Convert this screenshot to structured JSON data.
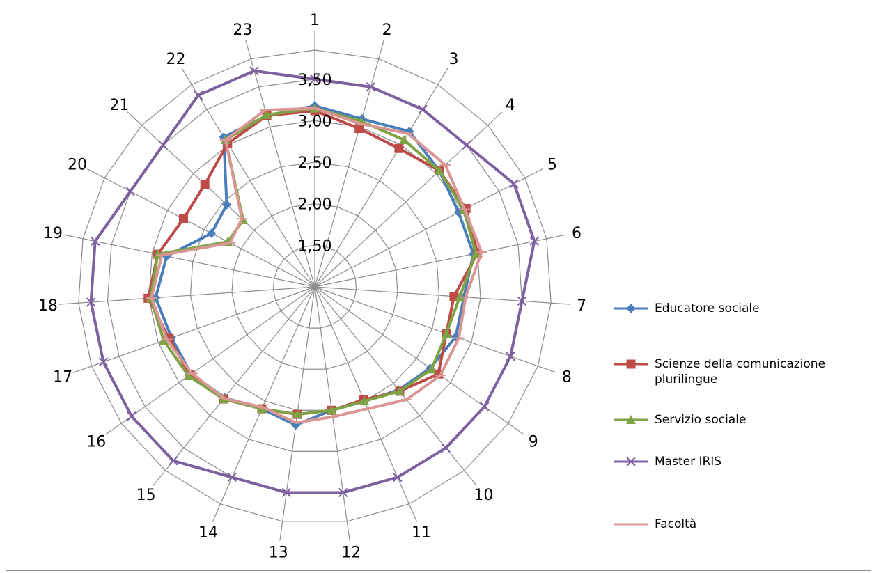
{
  "chart_data": {
    "type": "radar",
    "categories": [
      "1",
      "2",
      "3",
      "4",
      "5",
      "6",
      "7",
      "8",
      "9",
      "10",
      "11",
      "12",
      "13",
      "14",
      "15",
      "16",
      "17",
      "18",
      "19",
      "20",
      "21",
      "22",
      "23"
    ],
    "rings": [
      1.5,
      2.0,
      2.5,
      3.0,
      3.5
    ],
    "ring_labels": [
      "1,50",
      "2,00",
      "2,50",
      "3,00",
      "3,50"
    ],
    "rmin": 1.0,
    "rmax": 3.85,
    "legend_position": "right",
    "series": [
      {
        "name": "Educatore sociale",
        "color": "#4a7ebb",
        "marker": "diamond",
        "values": [
          3.18,
          3.1,
          3.19,
          3.05,
          2.95,
          2.95,
          2.8,
          2.8,
          2.7,
          2.6,
          2.5,
          2.5,
          2.68,
          2.6,
          2.72,
          2.82,
          2.83,
          2.92,
          2.82,
          2.4,
          2.45,
          3.11,
          3.14
        ]
      },
      {
        "name": "Scienze della comunicazione plurilingue",
        "color": "#be4b48",
        "marker": "square",
        "values": [
          3.12,
          2.98,
          2.95,
          3.05,
          3.05,
          3.0,
          2.68,
          2.68,
          2.82,
          2.62,
          2.48,
          2.5,
          2.55,
          2.6,
          2.74,
          2.84,
          2.86,
          3.01,
          2.93,
          2.78,
          2.81,
          3.02,
          3.14
        ]
      },
      {
        "name": "Servizio sociale",
        "color": "#7ea345",
        "marker": "triangle",
        "values": [
          3.15,
          3.07,
          3.07,
          3.05,
          3.02,
          2.98,
          2.75,
          2.68,
          2.72,
          2.62,
          2.5,
          2.5,
          2.55,
          2.6,
          2.74,
          2.86,
          2.93,
          2.98,
          2.93,
          2.18,
          2.18,
          3.07,
          3.15
        ]
      },
      {
        "name": "Master IRIS",
        "color": "#7d60a0",
        "marker": "x",
        "values": [
          3.5,
          3.5,
          3.5,
          3.5,
          3.7,
          3.7,
          3.5,
          3.5,
          3.5,
          3.5,
          3.5,
          3.5,
          3.5,
          3.5,
          3.7,
          3.7,
          3.7,
          3.7,
          3.7,
          3.5,
          3.5,
          3.7,
          3.7
        ]
      },
      {
        "name": "Facoltà",
        "color": "#d99694",
        "marker": "none",
        "values": [
          3.15,
          3.04,
          3.16,
          3.15,
          3.03,
          3.05,
          2.82,
          2.84,
          2.85,
          2.75,
          2.6,
          2.58,
          2.65,
          2.58,
          2.73,
          2.81,
          2.89,
          2.97,
          2.88,
          2.15,
          2.2,
          3.07,
          3.21
        ]
      }
    ]
  }
}
